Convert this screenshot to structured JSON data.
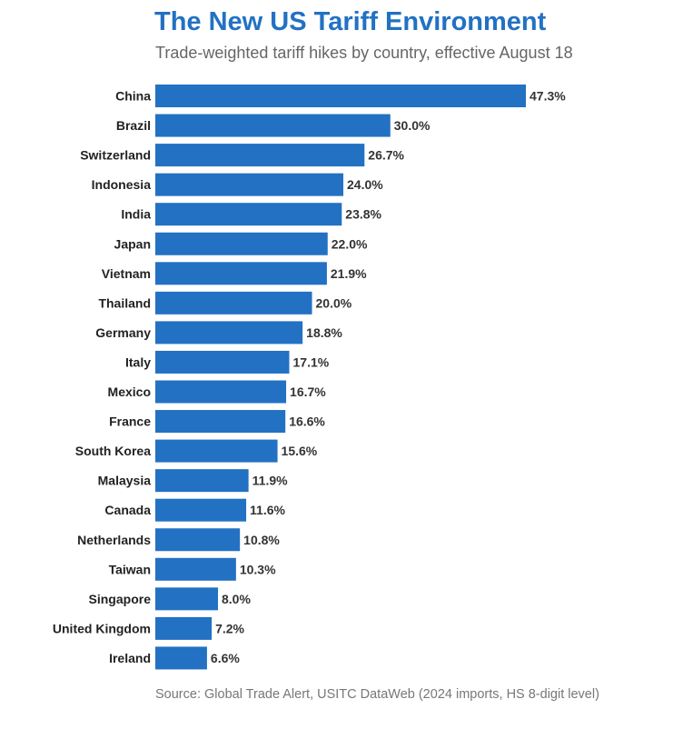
{
  "header": {
    "title": "The New US Tariff Environment",
    "subtitle": "Trade-weighted tariff hikes by country, effective August 18"
  },
  "footer": {
    "source": "Source: Global Trade Alert, USITC DataWeb (2024 imports, HS 8-digit level)"
  },
  "colors": {
    "bar": "#2271c3",
    "title": "#2271c3"
  },
  "chart_data": {
    "type": "bar",
    "orientation": "horizontal",
    "categories": [
      "China",
      "Brazil",
      "Switzerland",
      "Indonesia",
      "India",
      "Japan",
      "Vietnam",
      "Thailand",
      "Germany",
      "Italy",
      "Mexico",
      "France",
      "South Korea",
      "Malaysia",
      "Canada",
      "Netherlands",
      "Taiwan",
      "Singapore",
      "United Kingdom",
      "Ireland"
    ],
    "values": [
      47.3,
      30.0,
      26.7,
      24.0,
      23.8,
      22.0,
      21.9,
      20.0,
      18.8,
      17.1,
      16.7,
      16.6,
      15.6,
      11.9,
      11.6,
      10.8,
      10.3,
      8.0,
      7.2,
      6.6
    ],
    "value_labels": [
      "47.3%",
      "30.0%",
      "26.7%",
      "24.0%",
      "23.8%",
      "22.0%",
      "21.9%",
      "20.0%",
      "18.8%",
      "17.1%",
      "16.7%",
      "16.6%",
      "15.6%",
      "11.9%",
      "11.6%",
      "10.8%",
      "10.3%",
      "8.0%",
      "7.2%",
      "6.6%"
    ],
    "title": "The New US Tariff Environment",
    "subtitle": "Trade-weighted tariff hikes by country, effective August 18",
    "xlabel": "",
    "ylabel": "",
    "xlim": [
      0,
      47.3
    ],
    "grid": false,
    "legend": "none"
  }
}
